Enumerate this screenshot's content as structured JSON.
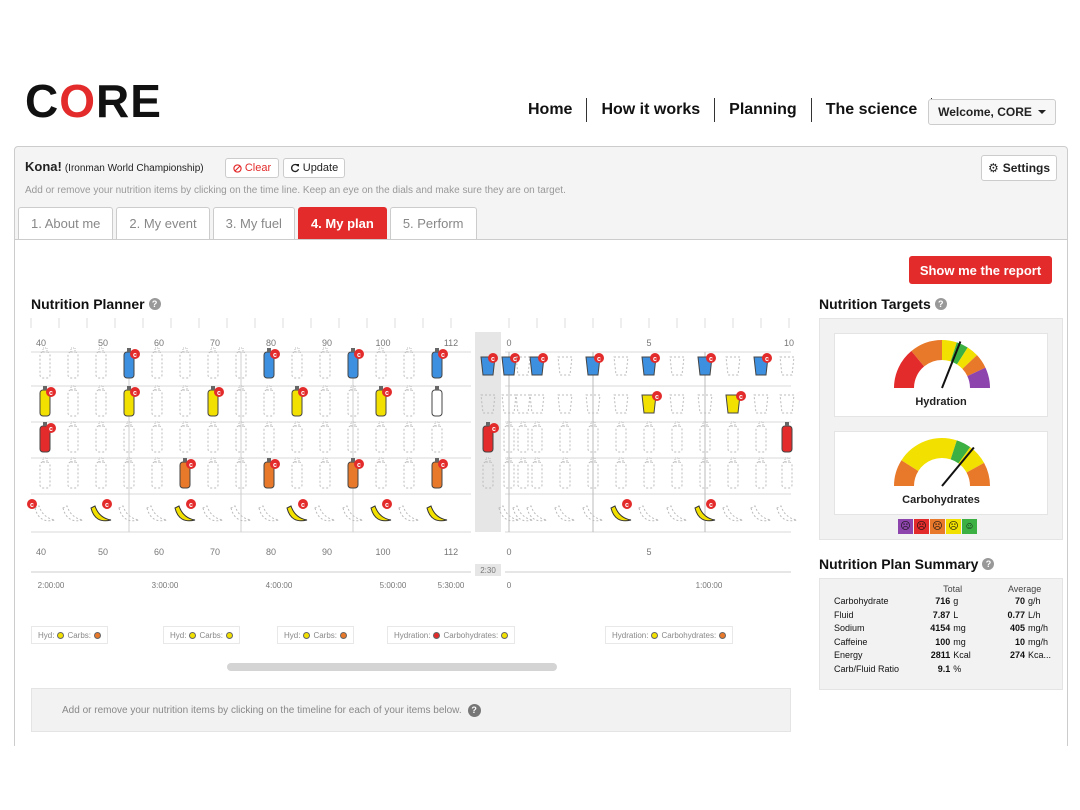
{
  "header": {
    "logo_c": "C",
    "logo_o": "O",
    "logo_re": "RE",
    "nav": [
      "Home",
      "How it works",
      "Planning",
      "The science"
    ],
    "welcome_label": "Welcome, CORE"
  },
  "event": {
    "title": "Kona!",
    "subtitle": "(Ironman World Championship)",
    "clear_label": "Clear",
    "update_label": "Update",
    "settings_label": "Settings",
    "hint": "Add or remove your nutrition items by clicking on the time line. Keep an eye on the dials and make sure they are on target."
  },
  "tabs": [
    "1. About me",
    "2. My event",
    "3. My fuel",
    "4. My plan",
    "5. Perform"
  ],
  "report_button": "Show me the report",
  "planner": {
    "title": "Nutrition Planner",
    "top_ticks_left": [
      "40",
      "50",
      "60",
      "70",
      "80",
      "90",
      "100",
      "112"
    ],
    "top_ticks_right": [
      "0",
      "5",
      "10"
    ],
    "bottom_ticks_left": [
      "40",
      "50",
      "60",
      "70",
      "80",
      "90",
      "100",
      "112"
    ],
    "bottom_ticks_right": [
      "0",
      "5"
    ],
    "time_ticks_left": [
      "2:00:00",
      "3:00:00",
      "4:00:00",
      "5:00:00",
      "5:30:00"
    ],
    "transition_label": "2:30",
    "time_ticks_right": [
      "0",
      "1:00:00"
    ],
    "legend": [
      {
        "a": "Hyd:",
        "b": "Carbs:",
        "ca": "#f2e000",
        "cb": "#e8782a"
      },
      {
        "a": "Hyd:",
        "b": "Carbs:",
        "ca": "#f2e000",
        "cb": "#f2e000"
      },
      {
        "a": "Hyd:",
        "b": "Carbs:",
        "ca": "#f2e000",
        "cb": "#e8782a"
      },
      {
        "a": "Hydration:",
        "b": "Carbohydrates:",
        "ca": "#e32b2b",
        "cb": "#f2e000"
      },
      {
        "a": "Hydration:",
        "b": "Carbohydrates:",
        "ca": "#f2e000",
        "cb": "#e8782a"
      }
    ],
    "footer_hint": "Add or remove your nutrition items by clicking on the timeline for each of your items below."
  },
  "targets": {
    "title": "Nutrition Targets",
    "hydration_label": "Hydration",
    "carbs_label": "Carbohydrates",
    "hydration_level": 0.62,
    "carbs_level": 0.72,
    "faces": [
      "☹",
      "☹",
      "☹",
      "☹",
      "☺"
    ],
    "face_colors": [
      "#8e44ad",
      "#e32b2b",
      "#e8782a",
      "#f2e000",
      "#3cb043"
    ]
  },
  "summary": {
    "title": "Nutrition Plan Summary",
    "col_total": "Total",
    "col_average": "Average",
    "rows": [
      {
        "name": "Carbohydrate",
        "total": "716",
        "tunit": "g",
        "avg": "70",
        "aunit": "g/h"
      },
      {
        "name": "Fluid",
        "total": "7.87",
        "tunit": "L",
        "avg": "0.77",
        "aunit": "L/h"
      },
      {
        "name": "Sodium",
        "total": "4154",
        "tunit": "mg",
        "avg": "405",
        "aunit": "mg/h"
      },
      {
        "name": "Caffeine",
        "total": "100",
        "tunit": "mg",
        "avg": "10",
        "aunit": "mg/h"
      },
      {
        "name": "Energy",
        "total": "2811",
        "tunit": "Kcal",
        "avg": "274",
        "aunit": "Kca..."
      },
      {
        "name": "Carb/Fluid Ratio",
        "total": "9.1",
        "tunit": "%",
        "avg": "",
        "aunit": ""
      }
    ]
  },
  "colors": {
    "accent": "#e32b2b",
    "blue": "#3d8fe0",
    "yellow": "#f2e000",
    "orange": "#e8782a",
    "green": "#3cb043"
  }
}
